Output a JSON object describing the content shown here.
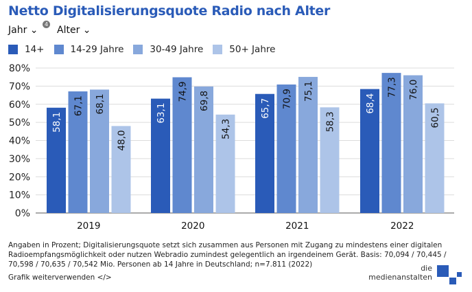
{
  "title": "Netto Digitalisierungsquote Radio nach Alter",
  "filters": [
    {
      "label": "Jahr",
      "badge": "4"
    },
    {
      "label": "Alter"
    }
  ],
  "colors": {
    "accent": "#2a5bb8"
  },
  "chart_data": {
    "type": "bar",
    "categories": [
      "2019",
      "2020",
      "2021",
      "2022"
    ],
    "series": [
      {
        "name": "14+",
        "color": "#2a5bb8",
        "values": [
          58.1,
          63.1,
          65.7,
          68.4
        ]
      },
      {
        "name": "14-29 Jahre",
        "color": "#5f88cf",
        "values": [
          67.1,
          74.9,
          70.9,
          77.3
        ]
      },
      {
        "name": "30-49 Jahre",
        "color": "#88a8dc",
        "values": [
          68.1,
          69.8,
          75.1,
          76.0
        ]
      },
      {
        "name": "50+ Jahre",
        "color": "#adc4e8",
        "values": [
          48.0,
          54.3,
          58.3,
          60.5
        ]
      }
    ],
    "data_labels": [
      [
        "58,1",
        "63,1",
        "65,7",
        "68,4"
      ],
      [
        "67,1",
        "74,9",
        "70,9",
        "77,3"
      ],
      [
        "68,1",
        "69,8",
        "75,1",
        "76,0"
      ],
      [
        "48,0",
        "54,3",
        "58,3",
        "60,5"
      ]
    ],
    "yticks": [
      "0%",
      "10%",
      "20%",
      "30%",
      "40%",
      "50%",
      "60%",
      "70%",
      "80%"
    ],
    "ylim": [
      0,
      80
    ],
    "grid": true,
    "legend": "top-left"
  },
  "footnote": "Angaben in Prozent; Digitalisierungsquote setzt sich zusammen aus Personen mit Zugang zu mindestens einer digitalen Radioempfangsmöglichkeit oder nutzen Webradio zumindest gelegentlich an irgendeinem Gerät. Basis: 70,094 / 70,445 / 70,598 / 70,635 / 70,542 Mio. Personen ab 14 Jahre in Deutschland; n=7.811 (2022)",
  "reuse_link": "Grafik weiterverwenden </>",
  "logo": {
    "line1": "die",
    "line2": "medienanstalten"
  }
}
